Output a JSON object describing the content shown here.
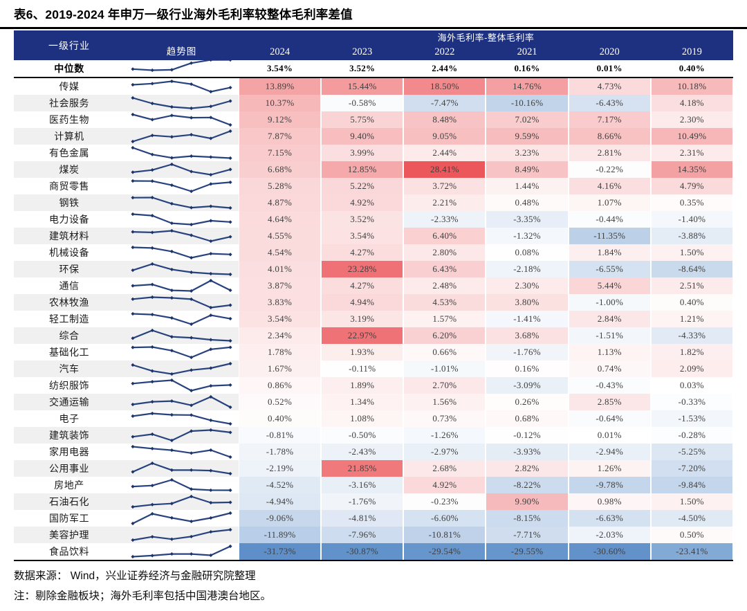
{
  "title": "表6、2019-2024 年申万一级行业海外毛利率较整体毛利率差值",
  "header": {
    "industry": "一级行业",
    "trend": "趋势图",
    "group": "海外毛利率-整体毛利率"
  },
  "chart_data": {
    "type": "heatmap",
    "title": "表6、2019-2024 年申万一级行业海外毛利率较整体毛利率差值",
    "unit": "%",
    "columns": [
      "2024",
      "2023",
      "2022",
      "2021",
      "2020",
      "2019"
    ],
    "median": {
      "name": "中位数",
      "values": [
        3.54,
        3.52,
        2.44,
        0.16,
        0.01,
        0.4
      ]
    },
    "rows": [
      {
        "name": "传媒",
        "values": [
          13.89,
          15.44,
          18.5,
          14.76,
          4.73,
          10.18
        ]
      },
      {
        "name": "社会服务",
        "values": [
          10.37,
          -0.58,
          -7.47,
          -10.16,
          -6.43,
          4.18
        ]
      },
      {
        "name": "医药生物",
        "values": [
          9.12,
          5.75,
          8.48,
          7.02,
          7.17,
          2.3
        ]
      },
      {
        "name": "计算机",
        "values": [
          7.87,
          9.4,
          9.05,
          9.59,
          8.66,
          10.49
        ]
      },
      {
        "name": "有色金属",
        "values": [
          7.15,
          3.99,
          2.44,
          3.23,
          2.81,
          2.31
        ]
      },
      {
        "name": "煤炭",
        "values": [
          6.68,
          12.85,
          28.41,
          8.49,
          -0.22,
          14.35
        ]
      },
      {
        "name": "商贸零售",
        "values": [
          5.28,
          5.22,
          3.72,
          1.44,
          4.16,
          4.79
        ]
      },
      {
        "name": "钢铁",
        "values": [
          4.87,
          4.92,
          2.21,
          0.48,
          1.07,
          0.35
        ]
      },
      {
        "name": "电力设备",
        "values": [
          4.64,
          3.52,
          -2.33,
          -3.35,
          -0.44,
          -1.4
        ]
      },
      {
        "name": "建筑材料",
        "values": [
          4.55,
          3.54,
          6.4,
          -1.32,
          -11.35,
          -3.88
        ]
      },
      {
        "name": "机械设备",
        "values": [
          4.54,
          4.27,
          2.8,
          0.08,
          1.84,
          1.5
        ]
      },
      {
        "name": "环保",
        "values": [
          4.01,
          23.28,
          6.43,
          -2.18,
          -6.55,
          -8.64
        ]
      },
      {
        "name": "通信",
        "values": [
          3.87,
          4.27,
          2.48,
          2.3,
          5.44,
          2.51
        ]
      },
      {
        "name": "农林牧渔",
        "values": [
          3.83,
          4.94,
          4.53,
          3.8,
          -1.0,
          0.4
        ]
      },
      {
        "name": "轻工制造",
        "values": [
          3.54,
          3.19,
          1.57,
          -1.41,
          2.84,
          1.21
        ]
      },
      {
        "name": "综合",
        "values": [
          2.34,
          22.97,
          6.2,
          3.68,
          -1.51,
          -4.33
        ]
      },
      {
        "name": "基础化工",
        "values": [
          1.78,
          1.93,
          0.66,
          -1.76,
          1.13,
          1.82
        ]
      },
      {
        "name": "汽车",
        "values": [
          1.67,
          -0.11,
          -1.01,
          0.16,
          0.74,
          2.09
        ]
      },
      {
        "name": "纺织服饰",
        "values": [
          0.86,
          1.89,
          2.7,
          -3.09,
          -0.43,
          0.03
        ]
      },
      {
        "name": "交通运输",
        "values": [
          0.52,
          1.34,
          1.56,
          0.26,
          2.85,
          -0.33
        ]
      },
      {
        "name": "电子",
        "values": [
          0.4,
          1.08,
          0.73,
          0.68,
          -0.64,
          -1.53
        ]
      },
      {
        "name": "建筑装饰",
        "values": [
          -0.81,
          -0.5,
          -1.26,
          -0.12,
          0.01,
          -0.28
        ]
      },
      {
        "name": "家用电器",
        "values": [
          -1.78,
          -2.43,
          -2.97,
          -3.93,
          -2.94,
          -5.25
        ]
      },
      {
        "name": "公用事业",
        "values": [
          -2.19,
          21.85,
          2.68,
          2.82,
          1.26,
          -7.2
        ]
      },
      {
        "name": "房地产",
        "values": [
          -4.52,
          -3.16,
          4.92,
          -8.22,
          -9.78,
          -9.84
        ]
      },
      {
        "name": "石油石化",
        "values": [
          -4.94,
          -1.76,
          -0.23,
          9.9,
          0.98,
          1.5
        ]
      },
      {
        "name": "国防军工",
        "values": [
          -9.06,
          -4.81,
          -6.6,
          -8.15,
          -6.63,
          -4.5
        ]
      },
      {
        "name": "美容护理",
        "values": [
          -11.89,
          -7.96,
          -10.81,
          -7.71,
          -2.03,
          0.5
        ]
      },
      {
        "name": "食品饮料",
        "values": [
          -31.73,
          -30.87,
          -29.54,
          -29.55,
          -30.6,
          -23.41
        ]
      }
    ],
    "color_scale": {
      "positive": "#EC575B",
      "midpoint": "#FFFFFF",
      "negative": "#5E8FC9",
      "max": 28.41,
      "min": -31.73
    },
    "sparkline": {
      "color": "#27427E",
      "marker": "#1D3566",
      "order_rows": "left=2024",
      "order_median": "left=2019"
    }
  },
  "footer": {
    "source": "数据来源：  Wind，兴业证券经济与金融研究院整理",
    "note": "注：剔除金融板块；海外毛利率包括中国港澳台地区。"
  },
  "colors": {
    "header_bg": "#1E3181",
    "stripe": "#F0F0F0",
    "rule": "#000000",
    "value_text": "#3E3E3E"
  }
}
